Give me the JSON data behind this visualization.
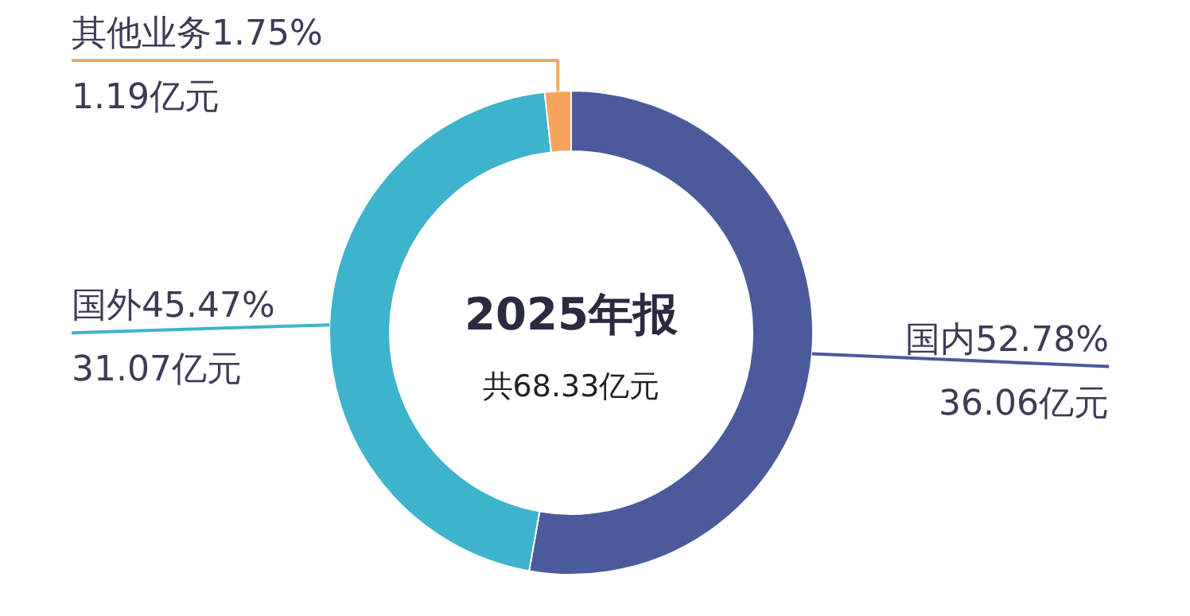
{
  "chart_data": {
    "type": "donut",
    "title": "2025年报",
    "subtitle": "共68.33亿元",
    "categories": [
      "国内",
      "国外",
      "其他业务"
    ],
    "values": [
      52.78,
      45.47,
      1.75
    ],
    "colors": [
      "#4b5a9b",
      "#3db4cb",
      "#f4a55b"
    ],
    "value_labels": [
      "52.78%",
      "45.47%",
      "1.75%"
    ],
    "annotations": [
      {
        "text": "36.06亿元",
        "x": "国内"
      },
      {
        "text": "31.07亿元",
        "x": "国外"
      },
      {
        "text": "1.19亿元",
        "x": "其他业务"
      }
    ]
  }
}
